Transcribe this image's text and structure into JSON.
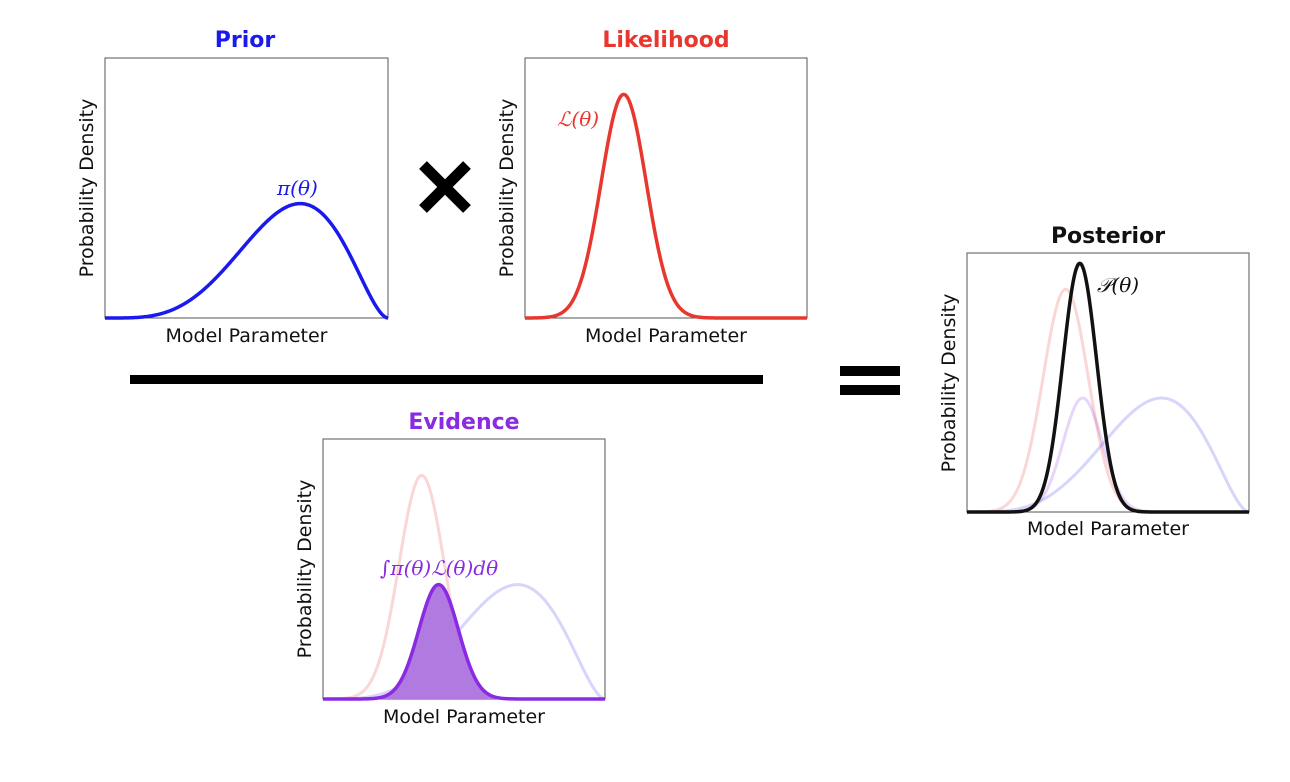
{
  "panels": {
    "prior": {
      "title": "Prior",
      "xlabel": "Model Parameter",
      "ylabel": "Probability Density",
      "curve_label": "π(θ)",
      "color": "#1a1aee"
    },
    "likelihood": {
      "title": "Likelihood",
      "xlabel": "Model Parameter",
      "ylabel": "Probability Density",
      "curve_label": "ℒ(θ)",
      "color": "#e8372f"
    },
    "evidence": {
      "title": "Evidence",
      "xlabel": "Model Parameter",
      "ylabel": "Probability Density",
      "curve_label": "∫π(θ)ℒ(θ)dθ",
      "color": "#8a2be2",
      "fill_color": "#b07ae0"
    },
    "posterior": {
      "title": "Posterior",
      "xlabel": "Model Parameter",
      "ylabel": "Probability Density",
      "curve_label": "𝒫(θ)",
      "color": "#111111"
    }
  },
  "operators": {
    "multiply": "×",
    "equals": "="
  }
}
